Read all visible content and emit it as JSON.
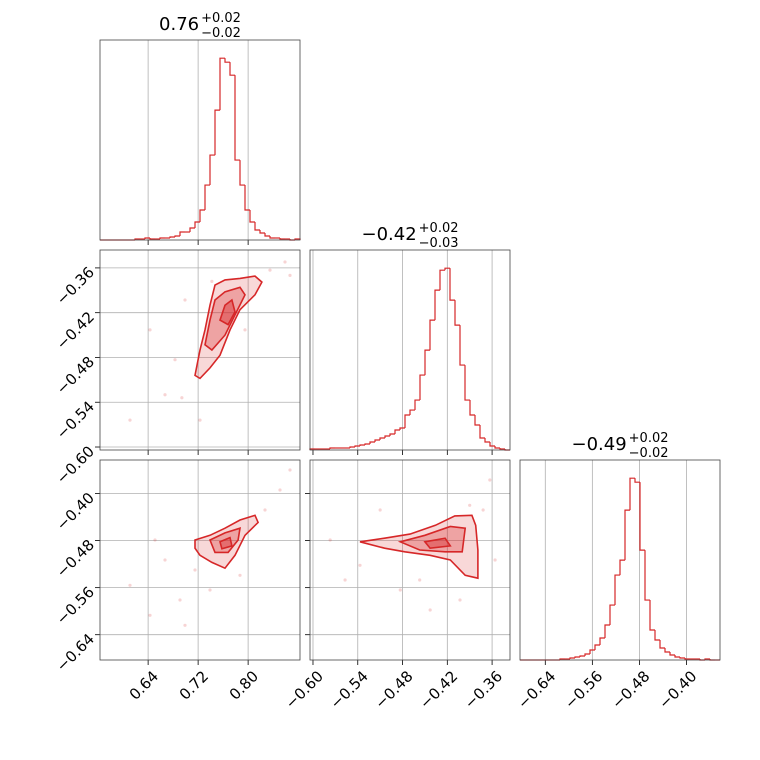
{
  "chart_data": {
    "type": "corner",
    "color": "#d62728",
    "grid": true,
    "parameters": [
      {
        "lim": [
          0.563,
          0.883
        ],
        "ticks": [
          0.64,
          0.72,
          {
            "value": 0.8,
            "label": "0.80"
          }
        ],
        "title": {
          "median": "0.76",
          "plus": "+0.02",
          "minus": "−0.02"
        },
        "hist": {
          "bins": [
            0.563,
            0.571,
            0.579,
            0.587,
            0.595,
            0.603,
            0.611,
            0.619,
            0.627,
            0.635,
            0.643,
            0.651,
            0.659,
            0.667,
            0.675,
            0.683,
            0.691,
            0.699,
            0.707,
            0.715,
            0.723,
            0.731,
            0.739,
            0.747,
            0.755,
            0.763,
            0.771,
            0.779,
            0.787,
            0.795,
            0.803,
            0.811,
            0.819,
            0.827,
            0.835,
            0.843,
            0.851,
            0.859,
            0.867,
            0.875,
            0.883
          ],
          "values": [
            0,
            0,
            0,
            0,
            0,
            0,
            0,
            1,
            1,
            2,
            1,
            1,
            2,
            2,
            3,
            4,
            8,
            8,
            12,
            18,
            30,
            55,
            85,
            130,
            182,
            178,
            165,
            80,
            55,
            30,
            18,
            10,
            7,
            4,
            2,
            2,
            1,
            1,
            0,
            1
          ]
        }
      },
      {
        "lim": [
          -0.604,
          -0.336
        ],
        "ticks": [
          {
            "value": -0.6,
            "label": "−0.60"
          },
          {
            "value": -0.54,
            "label": "−0.54"
          },
          {
            "value": -0.48,
            "label": "−0.48"
          },
          {
            "value": -0.42,
            "label": "−0.42"
          },
          {
            "value": -0.36,
            "label": "−0.36"
          }
        ],
        "title": {
          "median": "−0.42",
          "plus": "+0.02",
          "minus": "−0.03"
        },
        "hist": {
          "bins": [
            -0.604,
            -0.5973,
            -0.5906,
            -0.5839,
            -0.5772,
            -0.5705,
            -0.5638,
            -0.5571,
            -0.5504,
            -0.5437,
            -0.537,
            -0.5303,
            -0.5236,
            -0.5169,
            -0.5102,
            -0.5035,
            -0.4968,
            -0.4901,
            -0.4834,
            -0.4767,
            -0.47,
            -0.4633,
            -0.4566,
            -0.4499,
            -0.4432,
            -0.4365,
            -0.4298,
            -0.4231,
            -0.4164,
            -0.4097,
            -0.403,
            -0.3963,
            -0.3896,
            -0.3829,
            -0.3762,
            -0.3695,
            -0.3628,
            -0.3561,
            -0.3494,
            -0.3427,
            -0.336
          ],
          "values": [
            1,
            1,
            1,
            1,
            2,
            2,
            2,
            2,
            3,
            4,
            5,
            6,
            8,
            10,
            12,
            14,
            16,
            20,
            22,
            35,
            40,
            50,
            75,
            100,
            130,
            160,
            180,
            182,
            150,
            125,
            85,
            50,
            35,
            25,
            12,
            8,
            4,
            2,
            1,
            0
          ]
        }
      },
      {
        "lim": [
          -0.683,
          -0.343
        ],
        "ticks": [
          {
            "value": -0.64,
            "label": "−0.64"
          },
          {
            "value": -0.56,
            "label": "−0.56"
          },
          {
            "value": -0.48,
            "label": "−0.48"
          },
          {
            "value": -0.4,
            "label": "−0.40"
          }
        ],
        "title": {
          "median": "−0.49",
          "plus": "+0.02",
          "minus": "−0.02"
        },
        "hist": {
          "bins": [
            -0.683,
            -0.6745,
            -0.666,
            -0.6575,
            -0.649,
            -0.6405,
            -0.632,
            -0.6235,
            -0.615,
            -0.6065,
            -0.598,
            -0.5895,
            -0.581,
            -0.5725,
            -0.564,
            -0.5555,
            -0.547,
            -0.5385,
            -0.53,
            -0.5215,
            -0.513,
            -0.5045,
            -0.496,
            -0.4875,
            -0.479,
            -0.4705,
            -0.462,
            -0.4535,
            -0.445,
            -0.4365,
            -0.428,
            -0.4195,
            -0.411,
            -0.4025,
            -0.394,
            -0.3855,
            -0.377,
            -0.3685,
            -0.36,
            -0.3515,
            -0.343
          ],
          "values": [
            0,
            0,
            0,
            0,
            0,
            0,
            0,
            0,
            1,
            1,
            2,
            3,
            4,
            6,
            10,
            15,
            22,
            35,
            55,
            85,
            100,
            150,
            182,
            178,
            110,
            60,
            30,
            20,
            12,
            8,
            5,
            3,
            2,
            1,
            1,
            1,
            0,
            1,
            0,
            0
          ]
        }
      }
    ],
    "pairs": [
      {
        "contours": [
          {
            "x": [
              0.715,
              0.723,
              0.731,
              0.739,
              0.747,
              0.763,
              0.787,
              0.811,
              0.822,
              0.811,
              0.787,
              0.771,
              0.755,
              0.739,
              0.723
            ],
            "y": [
              -0.504,
              -0.47,
              -0.443,
              -0.41,
              -0.383,
              -0.376,
              -0.374,
              -0.371,
              -0.379,
              -0.396,
              -0.416,
              -0.443,
              -0.477,
              -0.494,
              -0.508
            ]
          },
          {
            "x": [
              0.731,
              0.739,
              0.747,
              0.763,
              0.787,
              0.795,
              0.779,
              0.763,
              0.742
            ],
            "y": [
              -0.463,
              -0.43,
              -0.403,
              -0.392,
              -0.386,
              -0.396,
              -0.423,
              -0.45,
              -0.47
            ]
          },
          {
            "x": [
              0.755,
              0.763,
              0.774,
              0.779,
              0.768
            ],
            "y": [
              -0.43,
              -0.41,
              -0.403,
              -0.419,
              -0.436
            ]
          }
        ],
        "points": {
          "x": [
            0.611,
            0.643,
            0.667,
            0.694,
            0.699,
            0.742,
            0.835,
            0.859,
            0.867,
            0.723,
            0.683,
            0.795
          ],
          "y": [
            -0.564,
            -0.443,
            -0.53,
            -0.534,
            -0.403,
            -0.378,
            -0.363,
            -0.352,
            -0.37,
            -0.564,
            -0.483,
            -0.443
          ]
        }
      },
      {
        "contours": [
          {
            "x": [
              0.715,
              0.739,
              0.763,
              0.787,
              0.811,
              0.816,
              0.795,
              0.779,
              0.763,
              0.742,
              0.723,
              0.715
            ],
            "y": [
              -0.479,
              -0.471,
              -0.459,
              -0.445,
              -0.437,
              -0.449,
              -0.471,
              -0.505,
              -0.527,
              -0.517,
              -0.505,
              -0.493
            ]
          },
          {
            "x": [
              0.739,
              0.763,
              0.787,
              0.784,
              0.768,
              0.747
            ],
            "y": [
              -0.479,
              -0.467,
              -0.459,
              -0.479,
              -0.5,
              -0.5
            ]
          },
          {
            "x": [
              0.755,
              0.771,
              0.774,
              0.758
            ],
            "y": [
              -0.482,
              -0.475,
              -0.489,
              -0.494
            ]
          }
        ],
        "points": {
          "x": [
            0.611,
            0.651,
            0.667,
            0.691,
            0.699,
            0.643,
            0.827,
            0.851,
            0.867,
            0.739,
            0.787,
            0.715
          ],
          "y": [
            -0.556,
            -0.479,
            -0.513,
            -0.581,
            -0.624,
            -0.607,
            -0.428,
            -0.394,
            -0.36,
            -0.564,
            -0.539,
            -0.53
          ]
        }
      },
      {
        "contours": [
          {
            "x": [
              -0.537,
              -0.504,
              -0.47,
              -0.436,
              -0.41,
              -0.387,
              -0.382,
              -0.379,
              -0.379,
              -0.396,
              -0.416,
              -0.443,
              -0.477,
              -0.504
            ],
            "y": [
              -0.482,
              -0.476,
              -0.469,
              -0.454,
              -0.438,
              -0.437,
              -0.454,
              -0.496,
              -0.544,
              -0.539,
              -0.513,
              -0.505,
              -0.499,
              -0.493
            ]
          },
          {
            "x": [
              -0.483,
              -0.45,
              -0.416,
              -0.396,
              -0.4,
              -0.423,
              -0.457
            ],
            "y": [
              -0.482,
              -0.471,
              -0.456,
              -0.459,
              -0.499,
              -0.499,
              -0.496
            ]
          },
          {
            "x": [
              -0.45,
              -0.423,
              -0.416,
              -0.443
            ],
            "y": [
              -0.482,
              -0.476,
              -0.489,
              -0.493
            ]
          }
        ],
        "points": {
          "x": [
            -0.577,
            -0.557,
            -0.51,
            -0.483,
            -0.443,
            -0.403,
            -0.372,
            -0.363,
            -0.356,
            -0.39,
            -0.457,
            -0.537
          ],
          "y": [
            -0.479,
            -0.547,
            -0.428,
            -0.564,
            -0.598,
            -0.581,
            -0.428,
            -0.377,
            -0.513,
            -0.42,
            -0.547,
            -0.522
          ]
        }
      }
    ]
  }
}
